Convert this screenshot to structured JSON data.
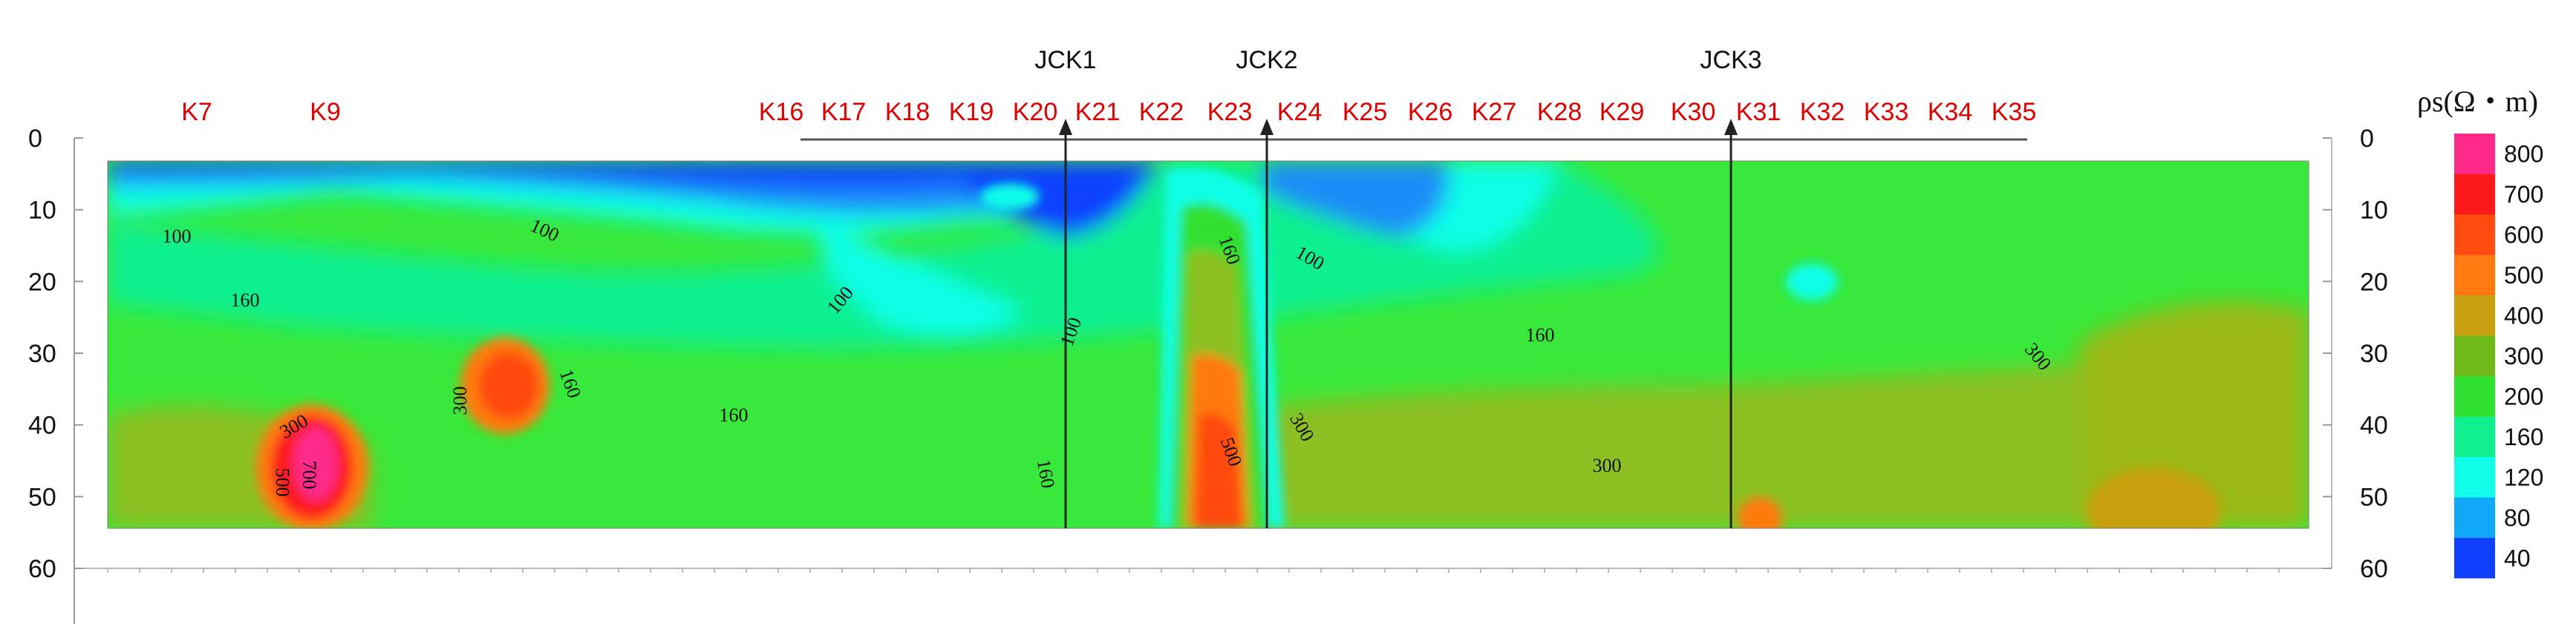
{
  "chart_data": {
    "type": "heatmap",
    "title": "",
    "xlabel": "",
    "ylabel": "",
    "y_ticks": [
      0,
      10,
      20,
      30,
      40,
      50,
      60
    ],
    "ylim": [
      0,
      60
    ],
    "data_depth_range": [
      4,
      55
    ],
    "station_labels": [
      "K7",
      "K9",
      "K16",
      "K17",
      "K18",
      "K19",
      "K20",
      "K21",
      "K22",
      "K23",
      "K24",
      "K25",
      "K26",
      "K27",
      "K28",
      "K29",
      "K30",
      "K31",
      "K32",
      "K33",
      "K34",
      "K35"
    ],
    "boreholes": [
      {
        "label": "JCK1",
        "between": [
          "K20",
          "K21"
        ]
      },
      {
        "label": "JCK2",
        "between": [
          "K23",
          "K24"
        ]
      },
      {
        "label": "JCK3",
        "between": [
          "K30",
          "K31"
        ]
      }
    ],
    "colorbar": {
      "title": "ρs(Ω・m)",
      "levels": [
        {
          "value": "800",
          "color": "#ff2a8a"
        },
        {
          "value": "700",
          "color": "#ff1a1a"
        },
        {
          "value": "600",
          "color": "#ff4a10"
        },
        {
          "value": "500",
          "color": "#ff7a10"
        },
        {
          "value": "400",
          "color": "#c8a010"
        },
        {
          "value": "300",
          "color": "#70b818"
        },
        {
          "value": "200",
          "color": "#30e030"
        },
        {
          "value": "160",
          "color": "#10f090"
        },
        {
          "value": "120",
          "color": "#10ffe8"
        },
        {
          "value": "80",
          "color": "#10a8f8"
        },
        {
          "value": "40",
          "color": "#1040ff"
        }
      ]
    },
    "contour_labels": [
      {
        "text": "100",
        "x_station": "K7",
        "depth": 11
      },
      {
        "text": "160",
        "x_station": "K7",
        "depth": 21
      },
      {
        "text": "100",
        "x_station": "K9",
        "depth": 10
      },
      {
        "text": "300",
        "x_station": "K9",
        "depth": 40
      },
      {
        "text": "500",
        "x_station": "K7",
        "depth": 46
      },
      {
        "text": "700",
        "x_station": "K9",
        "depth": 46
      },
      {
        "text": "300",
        "x_station": "K9",
        "depth": 35
      },
      {
        "text": "160",
        "x_station": "K9",
        "depth": 33
      },
      {
        "text": "160",
        "x_station": "K16",
        "depth": 40
      },
      {
        "text": "100",
        "x_station": "K17",
        "depth": 20
      },
      {
        "text": "100",
        "x_station": "K20",
        "depth": 25
      },
      {
        "text": "160",
        "x_station": "K20",
        "depth": 48
      },
      {
        "text": "160",
        "x_station": "K23",
        "depth": 14
      },
      {
        "text": "100",
        "x_station": "K24",
        "depth": 14
      },
      {
        "text": "300",
        "x_station": "K24",
        "depth": 40
      },
      {
        "text": "500",
        "x_station": "K23",
        "depth": 42
      },
      {
        "text": "160",
        "x_station": "K28",
        "depth": 28
      },
      {
        "text": "300",
        "x_station": "K29",
        "depth": 48
      },
      {
        "text": "300",
        "x_station": "K35",
        "depth": 30
      }
    ],
    "anomalies": [
      {
        "description_value": "800",
        "near_station": "K9",
        "depth_range": [
          41,
          53
        ]
      },
      {
        "description_value": "600",
        "near_station": "K9",
        "depth_range": [
          31,
          40
        ]
      },
      {
        "description_value": "500",
        "near_station": "K23",
        "depth_range": [
          35,
          55
        ]
      },
      {
        "description_value": "40",
        "depth_range": [
          4,
          14
        ]
      }
    ]
  }
}
